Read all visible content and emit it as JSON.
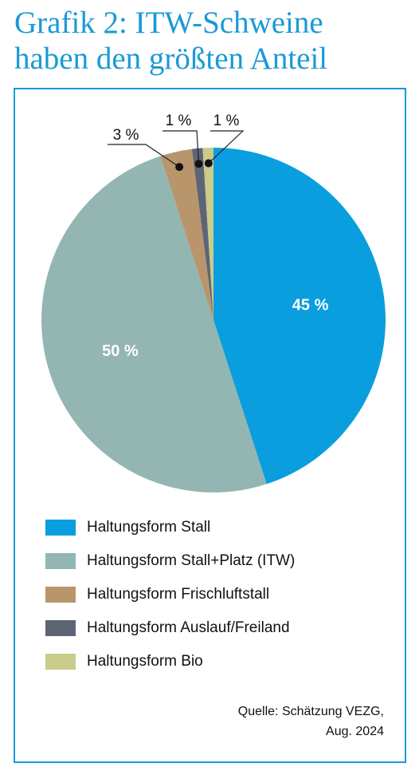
{
  "title_line1": "Grafik 2: ITW-Schweine",
  "title_line2": "haben den größten Anteil",
  "chart_data": {
    "type": "pie",
    "labels": [
      "Haltungsform Stall",
      "Haltungsform Stall+Platz (ITW)",
      "Haltungsform Frischluftstall",
      "Haltungsform Auslauf/Freiland",
      "Haltungsform Bio"
    ],
    "values": [
      45,
      50,
      3,
      1,
      1
    ],
    "value_labels": [
      "45 %",
      "50 %",
      "3 %",
      "1 %",
      "1 %"
    ],
    "colors": [
      "#0a9ede",
      "#93b6b2",
      "#b9956b",
      "#5d6575",
      "#c9cc8a"
    ],
    "start": "12 o'clock",
    "direction": "clockwise",
    "legend_position": "bottom"
  },
  "source_line1": "Quelle: Schätzung VEZG,",
  "source_line2": "Aug. 2024"
}
